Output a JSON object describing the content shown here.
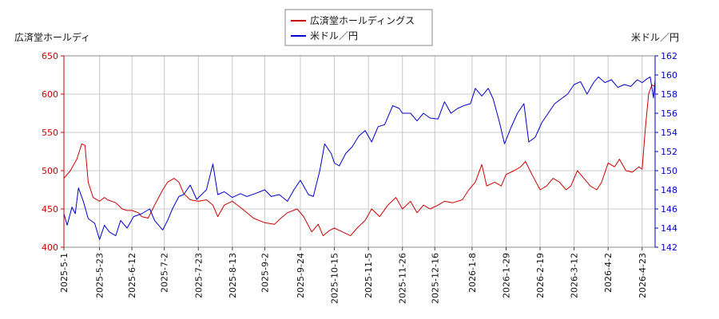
{
  "chart_data": {
    "type": "line",
    "legend_position": "top-center",
    "grid": true,
    "left_axis_title": "広済堂ホールディ",
    "right_axis_title": "米ドル／円",
    "left_axis": {
      "ylim": [
        400,
        650
      ],
      "ticks": [
        "400",
        "450",
        "500",
        "550",
        "600",
        "650"
      ],
      "color": "#cc0000"
    },
    "right_axis": {
      "ylim": [
        142,
        162
      ],
      "ticks": [
        "142",
        "144",
        "146",
        "148",
        "150",
        "152",
        "154",
        "156",
        "158",
        "160",
        "162"
      ],
      "color": "#0000cc"
    },
    "x_ticks": [
      "2025-5-1",
      "2025-5-23",
      "2025-6-12",
      "2025-7-2",
      "2025-7-23",
      "2025-8-13",
      "2025-9-2",
      "2025-9-24",
      "2025-10-15",
      "2025-11-5",
      "2025-11-26",
      "2025-12-16",
      "2026-1-8",
      "2026-1-29",
      "2026-2-19",
      "2026-3-12",
      "2026-4-2",
      "2026-4-23"
    ],
    "x_range": [
      "2025-5-1",
      "2026-5-1"
    ],
    "series": [
      {
        "name": "広済堂ホールディングス",
        "axis": "left",
        "color": "#cc0000",
        "points": [
          [
            "2025-5-1",
            490
          ],
          [
            "2025-5-5",
            500
          ],
          [
            "2025-5-9",
            515
          ],
          [
            "2025-5-12",
            535
          ],
          [
            "2025-5-14",
            533
          ],
          [
            "2025-5-16",
            485
          ],
          [
            "2025-5-19",
            465
          ],
          [
            "2025-5-23",
            460
          ],
          [
            "2025-5-26",
            465
          ],
          [
            "2025-5-28",
            462
          ],
          [
            "2025-6-2",
            458
          ],
          [
            "2025-6-6",
            450
          ],
          [
            "2025-6-9",
            448
          ],
          [
            "2025-6-12",
            448
          ],
          [
            "2025-6-16",
            445
          ],
          [
            "2025-6-18",
            440
          ],
          [
            "2025-6-22",
            438
          ],
          [
            "2025-6-26",
            455
          ],
          [
            "2025-7-1",
            475
          ],
          [
            "2025-7-4",
            485
          ],
          [
            "2025-7-8",
            490
          ],
          [
            "2025-7-11",
            485
          ],
          [
            "2025-7-14",
            470
          ],
          [
            "2025-7-18",
            462
          ],
          [
            "2025-7-23",
            460
          ],
          [
            "2025-7-28",
            462
          ],
          [
            "2025-8-1",
            455
          ],
          [
            "2025-8-4",
            440
          ],
          [
            "2025-8-8",
            455
          ],
          [
            "2025-8-13",
            460
          ],
          [
            "2025-8-18",
            452
          ],
          [
            "2025-8-22",
            445
          ],
          [
            "2025-8-26",
            438
          ],
          [
            "2025-9-2",
            432
          ],
          [
            "2025-9-8",
            430
          ],
          [
            "2025-9-12",
            438
          ],
          [
            "2025-9-16",
            445
          ],
          [
            "2025-9-22",
            450
          ],
          [
            "2025-9-26",
            440
          ],
          [
            "2025-10-1",
            420
          ],
          [
            "2025-10-5",
            430
          ],
          [
            "2025-10-8",
            415
          ],
          [
            "2025-10-12",
            422
          ],
          [
            "2025-10-15",
            425
          ],
          [
            "2025-10-20",
            420
          ],
          [
            "2025-10-25",
            415
          ],
          [
            "2025-10-29",
            425
          ],
          [
            "2025-11-3",
            435
          ],
          [
            "2025-11-7",
            450
          ],
          [
            "2025-11-12",
            440
          ],
          [
            "2025-11-17",
            455
          ],
          [
            "2025-11-22",
            465
          ],
          [
            "2025-11-26",
            450
          ],
          [
            "2025-12-1",
            460
          ],
          [
            "2025-12-5",
            445
          ],
          [
            "2025-12-9",
            455
          ],
          [
            "2025-12-13",
            450
          ],
          [
            "2025-12-18",
            455
          ],
          [
            "2025-12-22",
            460
          ],
          [
            "2025-12-27",
            458
          ],
          [
            "2026-1-2",
            462
          ],
          [
            "2026-1-6",
            475
          ],
          [
            "2026-1-10",
            485
          ],
          [
            "2026-1-14",
            508
          ],
          [
            "2026-1-17",
            480
          ],
          [
            "2026-1-22",
            485
          ],
          [
            "2026-1-26",
            480
          ],
          [
            "2026-1-29",
            495
          ],
          [
            "2026-2-3",
            500
          ],
          [
            "2026-2-7",
            505
          ],
          [
            "2026-2-10",
            512
          ],
          [
            "2026-2-14",
            495
          ],
          [
            "2026-2-19",
            475
          ],
          [
            "2026-2-23",
            480
          ],
          [
            "2026-2-27",
            490
          ],
          [
            "2026-3-3",
            485
          ],
          [
            "2026-3-7",
            475
          ],
          [
            "2026-3-10",
            480
          ],
          [
            "2026-3-14",
            500
          ],
          [
            "2026-3-18",
            490
          ],
          [
            "2026-3-22",
            480
          ],
          [
            "2026-3-26",
            475
          ],
          [
            "2026-3-29",
            485
          ],
          [
            "2026-4-2",
            510
          ],
          [
            "2026-4-6",
            505
          ],
          [
            "2026-4-9",
            515
          ],
          [
            "2026-4-13",
            500
          ],
          [
            "2026-4-17",
            498
          ],
          [
            "2026-4-21",
            505
          ],
          [
            "2026-4-23",
            502
          ],
          [
            "2026-4-25",
            555
          ],
          [
            "2026-4-27",
            600
          ],
          [
            "2026-4-29",
            612
          ],
          [
            "2026-5-1",
            610
          ]
        ]
      },
      {
        "name": "米ドル／円",
        "axis": "right",
        "color": "#0000cc",
        "points": [
          [
            "2025-5-1",
            145.5
          ],
          [
            "2025-5-3",
            144.3
          ],
          [
            "2025-5-6",
            146.2
          ],
          [
            "2025-5-8",
            145.5
          ],
          [
            "2025-5-10",
            148.2
          ],
          [
            "2025-5-13",
            146.8
          ],
          [
            "2025-5-16",
            145.0
          ],
          [
            "2025-5-20",
            144.5
          ],
          [
            "2025-5-23",
            142.8
          ],
          [
            "2025-5-26",
            144.3
          ],
          [
            "2025-5-29",
            143.6
          ],
          [
            "2025-6-2",
            143.2
          ],
          [
            "2025-6-5",
            144.8
          ],
          [
            "2025-6-9",
            144.0
          ],
          [
            "2025-6-13",
            145.2
          ],
          [
            "2025-6-18",
            145.5
          ],
          [
            "2025-6-23",
            146.0
          ],
          [
            "2025-6-26",
            144.8
          ],
          [
            "2025-7-1",
            143.8
          ],
          [
            "2025-7-4",
            144.8
          ],
          [
            "2025-7-7",
            146.0
          ],
          [
            "2025-7-11",
            147.3
          ],
          [
            "2025-7-14",
            147.5
          ],
          [
            "2025-7-18",
            148.5
          ],
          [
            "2025-7-22",
            147.0
          ],
          [
            "2025-7-25",
            147.5
          ],
          [
            "2025-7-28",
            148.0
          ],
          [
            "2025-8-1",
            150.7
          ],
          [
            "2025-8-4",
            147.5
          ],
          [
            "2025-8-8",
            147.8
          ],
          [
            "2025-8-13",
            147.2
          ],
          [
            "2025-8-18",
            147.6
          ],
          [
            "2025-8-22",
            147.3
          ],
          [
            "2025-8-27",
            147.6
          ],
          [
            "2025-9-2",
            148.0
          ],
          [
            "2025-9-6",
            147.3
          ],
          [
            "2025-9-11",
            147.5
          ],
          [
            "2025-9-16",
            146.8
          ],
          [
            "2025-9-20",
            148.0
          ],
          [
            "2025-9-24",
            149.0
          ],
          [
            "2025-9-29",
            147.5
          ],
          [
            "2025-10-2",
            147.3
          ],
          [
            "2025-10-6",
            150.0
          ],
          [
            "2025-10-9",
            152.8
          ],
          [
            "2025-10-13",
            151.8
          ],
          [
            "2025-10-15",
            150.8
          ],
          [
            "2025-10-18",
            150.5
          ],
          [
            "2025-10-22",
            151.8
          ],
          [
            "2025-10-26",
            152.5
          ],
          [
            "2025-10-30",
            153.6
          ],
          [
            "2025-11-3",
            154.2
          ],
          [
            "2025-11-7",
            153.0
          ],
          [
            "2025-11-11",
            154.6
          ],
          [
            "2025-11-15",
            154.8
          ],
          [
            "2025-11-20",
            156.8
          ],
          [
            "2025-11-24",
            156.5
          ],
          [
            "2025-11-26",
            156.0
          ],
          [
            "2025-12-1",
            156.0
          ],
          [
            "2025-12-5",
            155.2
          ],
          [
            "2025-12-9",
            156.0
          ],
          [
            "2025-12-13",
            155.5
          ],
          [
            "2025-12-18",
            155.4
          ],
          [
            "2025-12-22",
            157.2
          ],
          [
            "2025-12-26",
            156.0
          ],
          [
            "2025-12-30",
            156.5
          ],
          [
            "2026-1-3",
            156.8
          ],
          [
            "2026-1-7",
            157.0
          ],
          [
            "2026-1-10",
            158.6
          ],
          [
            "2026-1-14",
            157.8
          ],
          [
            "2026-1-18",
            158.6
          ],
          [
            "2026-1-21",
            157.5
          ],
          [
            "2026-1-25",
            155.0
          ],
          [
            "2026-1-28",
            152.8
          ],
          [
            "2026-2-1",
            154.5
          ],
          [
            "2026-2-5",
            156.0
          ],
          [
            "2026-2-9",
            157.0
          ],
          [
            "2026-2-12",
            153.0
          ],
          [
            "2026-2-16",
            153.5
          ],
          [
            "2026-2-20",
            155.0
          ],
          [
            "2026-2-24",
            156.0
          ],
          [
            "2026-2-28",
            157.0
          ],
          [
            "2026-3-4",
            157.5
          ],
          [
            "2026-3-8",
            158.0
          ],
          [
            "2026-3-12",
            159.0
          ],
          [
            "2026-3-16",
            159.3
          ],
          [
            "2026-3-20",
            158.0
          ],
          [
            "2026-3-24",
            159.2
          ],
          [
            "2026-3-27",
            159.8
          ],
          [
            "2026-3-31",
            159.2
          ],
          [
            "2026-4-4",
            159.5
          ],
          [
            "2026-4-8",
            158.7
          ],
          [
            "2026-4-12",
            159.0
          ],
          [
            "2026-4-16",
            158.8
          ],
          [
            "2026-4-20",
            159.5
          ],
          [
            "2026-4-23",
            159.2
          ],
          [
            "2026-4-26",
            159.6
          ],
          [
            "2026-4-28",
            159.8
          ],
          [
            "2026-4-30",
            157.6
          ],
          [
            "2026-5-1",
            159.5
          ]
        ]
      }
    ]
  }
}
